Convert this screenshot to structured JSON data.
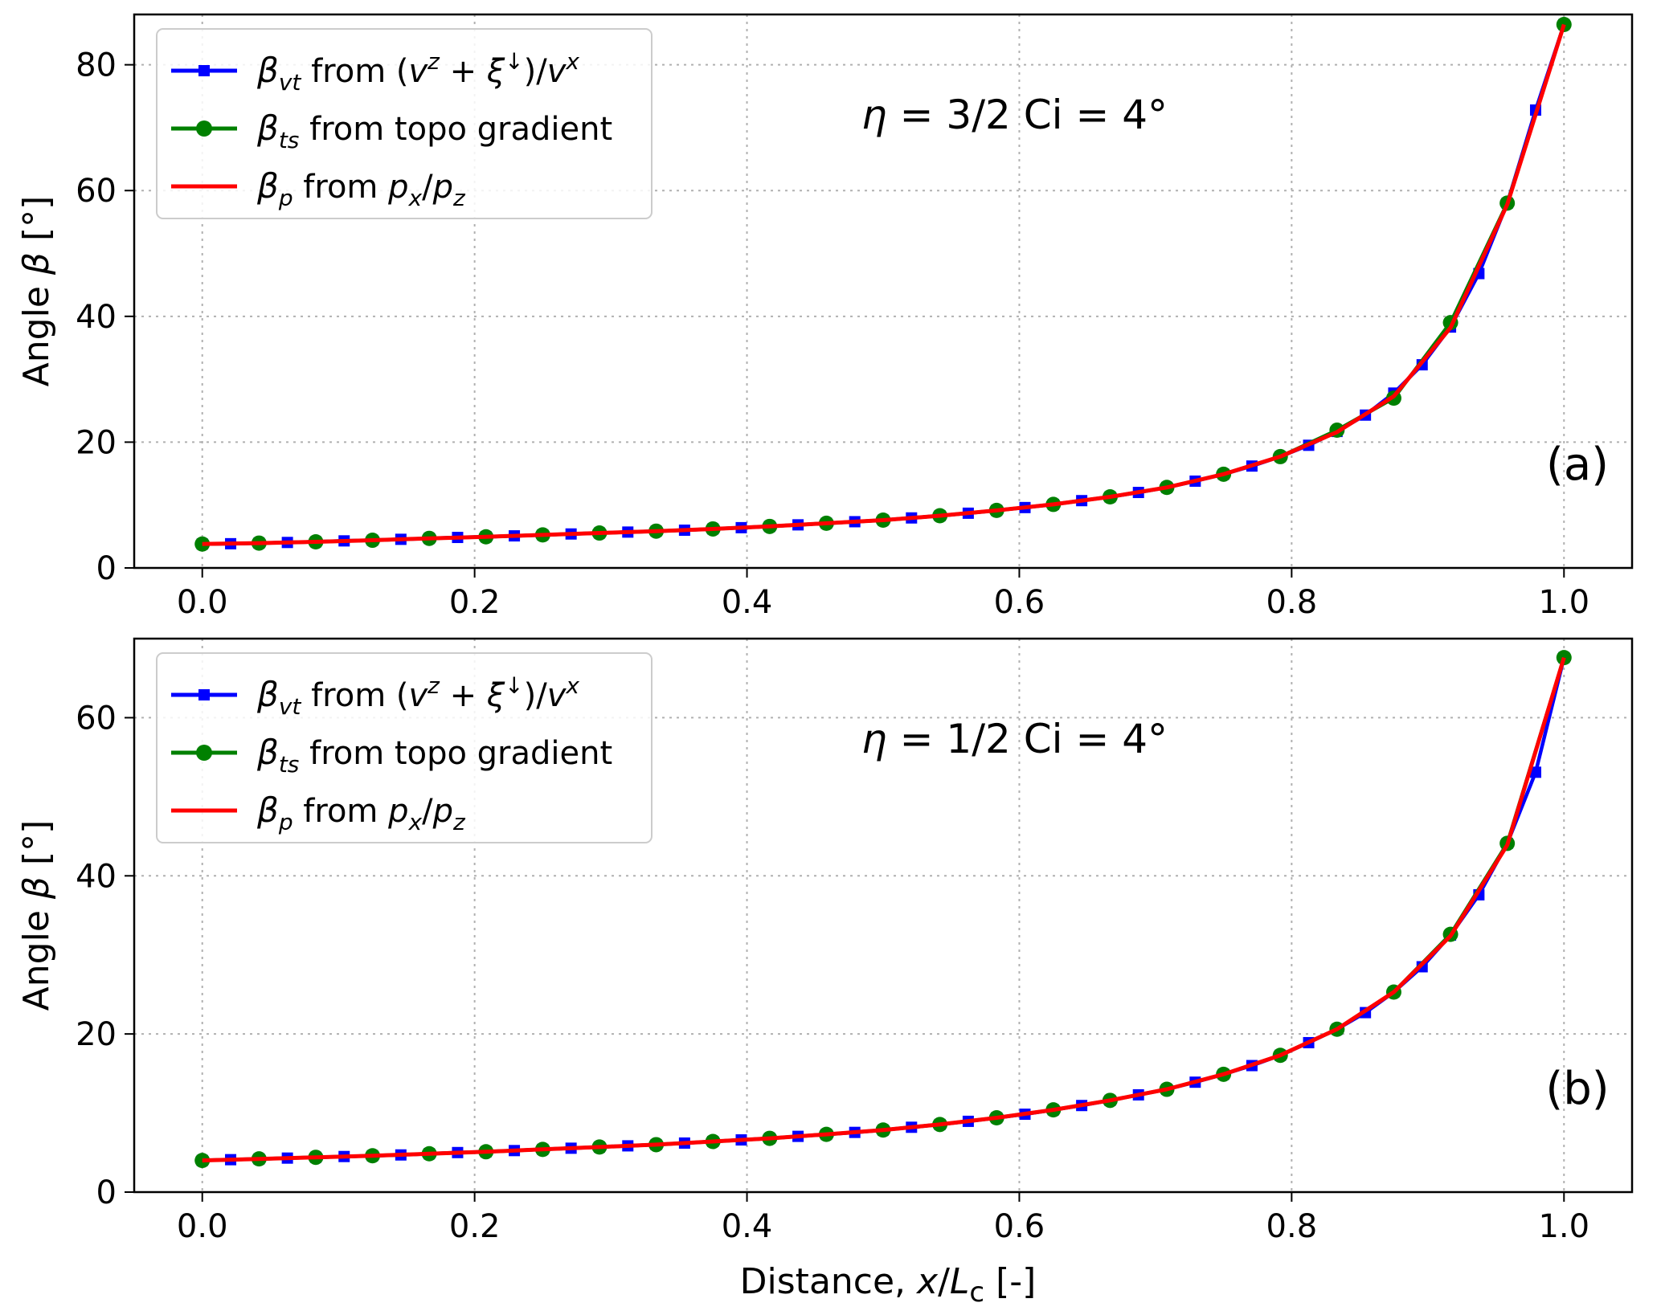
{
  "figure": {
    "xlabel_prefix": "Distance, ",
    "xlabel_var": "x",
    "xlabel_sep": "/",
    "xlabel_L": "L",
    "xlabel_sub": "c",
    "xlabel_unit": "  [-]"
  },
  "legend": {
    "vt": {
      "sym": "β",
      "sub": "vt",
      "text": " from (",
      "vz": "v",
      "vz_sup": "z",
      "plus": " + ",
      "xi": "ξ",
      "xi_sup": "↓",
      "close": ")/",
      "vx": "v",
      "vx_sup": "x"
    },
    "ts": {
      "sym": "β",
      "sub": "ts",
      "text": " from topo gradient"
    },
    "p": {
      "sym": "β",
      "sub": "p",
      "text": " from ",
      "px": "p",
      "px_sub": "x",
      "slash": "/",
      "pz": "p",
      "pz_sub": "z"
    }
  },
  "colors": {
    "vt": "#0000ff",
    "ts": "#008000",
    "p": "#ff0000",
    "grid": "#b0b0b0"
  },
  "chart_data": [
    {
      "type": "line",
      "panel": "(a)",
      "annotation": {
        "eta_sym": "η",
        "eta_rest": " =  3/2    Ci =  4°"
      },
      "xlabel": "",
      "ylabel_prefix": "Angle ",
      "ylabel_sym": "β",
      "ylabel_unit": "  [°]",
      "xlim": [
        -0.05,
        1.05
      ],
      "ylim": [
        0,
        88
      ],
      "xticks": [
        0.0,
        0.2,
        0.4,
        0.6,
        0.8,
        1.0
      ],
      "yticks": [
        0,
        20,
        40,
        60,
        80
      ],
      "legend_position": "upper-left",
      "grid": true,
      "series": [
        {
          "key": "vt",
          "marker": "square",
          "x": [
            0.0,
            0.02083,
            0.04167,
            0.0625,
            0.08333,
            0.10417,
            0.125,
            0.14583,
            0.16667,
            0.1875,
            0.20833,
            0.22917,
            0.25,
            0.27083,
            0.29167,
            0.3125,
            0.33333,
            0.35417,
            0.375,
            0.39583,
            0.41667,
            0.4375,
            0.45833,
            0.47917,
            0.5,
            0.52083,
            0.54167,
            0.5625,
            0.58333,
            0.60417,
            0.625,
            0.64583,
            0.66667,
            0.6875,
            0.70833,
            0.72917,
            0.75,
            0.77083,
            0.79167,
            0.8125,
            0.83333,
            0.85417,
            0.875,
            0.89583,
            0.91667,
            0.9375,
            0.95833,
            0.97917,
            1.0
          ],
          "values": [
            3.8,
            3.85,
            3.95,
            4.05,
            4.15,
            4.3,
            4.4,
            4.55,
            4.7,
            4.85,
            4.95,
            5.1,
            5.25,
            5.4,
            5.55,
            5.7,
            5.85,
            6.0,
            6.2,
            6.4,
            6.6,
            6.85,
            7.1,
            7.35,
            7.6,
            7.95,
            8.3,
            8.7,
            9.15,
            9.6,
            10.1,
            10.7,
            11.3,
            12.0,
            12.8,
            13.8,
            14.9,
            16.2,
            17.7,
            19.5,
            21.7,
            24.3,
            27.8,
            32.3,
            38.3,
            46.8,
            58.0,
            72.8,
            86.4
          ]
        },
        {
          "key": "ts",
          "marker": "circle",
          "x": [
            0.0,
            0.04167,
            0.08333,
            0.125,
            0.16667,
            0.20833,
            0.25,
            0.29167,
            0.33333,
            0.375,
            0.41667,
            0.45833,
            0.5,
            0.54167,
            0.58333,
            0.625,
            0.66667,
            0.70833,
            0.75,
            0.79167,
            0.83333,
            0.875,
            0.91667,
            0.95833,
            1.0
          ],
          "values": [
            3.8,
            3.95,
            4.15,
            4.4,
            4.7,
            4.95,
            5.25,
            5.55,
            5.85,
            6.2,
            6.6,
            7.1,
            7.6,
            8.3,
            9.15,
            10.1,
            11.3,
            12.8,
            14.9,
            17.7,
            21.9,
            27.0,
            39.0,
            58.0,
            86.4
          ]
        },
        {
          "key": "p",
          "marker": "none",
          "x": [
            0.0,
            0.04167,
            0.08333,
            0.125,
            0.16667,
            0.20833,
            0.25,
            0.29167,
            0.33333,
            0.375,
            0.41667,
            0.45833,
            0.5,
            0.54167,
            0.58333,
            0.625,
            0.66667,
            0.70833,
            0.75,
            0.79167,
            0.83333,
            0.875,
            0.91667,
            0.95833,
            1.0
          ],
          "values": [
            3.8,
            3.95,
            4.15,
            4.4,
            4.7,
            4.95,
            5.25,
            5.55,
            5.85,
            6.2,
            6.6,
            7.1,
            7.6,
            8.3,
            9.15,
            10.1,
            11.3,
            12.8,
            14.9,
            17.7,
            21.6,
            27.3,
            38.2,
            57.8,
            86.4
          ]
        }
      ]
    },
    {
      "type": "line",
      "panel": "(b)",
      "annotation": {
        "eta_sym": "η",
        "eta_rest": " =  1/2    Ci =  4°"
      },
      "xlabel": "Distance, x/Lc  [-]",
      "ylabel_prefix": "Angle ",
      "ylabel_sym": "β",
      "ylabel_unit": "  [°]",
      "xlim": [
        -0.05,
        1.05
      ],
      "ylim": [
        0,
        70
      ],
      "xticks": [
        0.0,
        0.2,
        0.4,
        0.6,
        0.8,
        1.0
      ],
      "yticks": [
        0,
        20,
        40,
        60
      ],
      "legend_position": "upper-left",
      "grid": true,
      "series": [
        {
          "key": "vt",
          "marker": "square",
          "x": [
            0.0,
            0.02083,
            0.04167,
            0.0625,
            0.08333,
            0.10417,
            0.125,
            0.14583,
            0.16667,
            0.1875,
            0.20833,
            0.22917,
            0.25,
            0.27083,
            0.29167,
            0.3125,
            0.33333,
            0.35417,
            0.375,
            0.39583,
            0.41667,
            0.4375,
            0.45833,
            0.47917,
            0.5,
            0.52083,
            0.54167,
            0.5625,
            0.58333,
            0.60417,
            0.625,
            0.64583,
            0.66667,
            0.6875,
            0.70833,
            0.72917,
            0.75,
            0.77083,
            0.79167,
            0.8125,
            0.83333,
            0.85417,
            0.875,
            0.89583,
            0.91667,
            0.9375,
            0.95833,
            0.97917,
            1.0
          ],
          "values": [
            4.0,
            4.1,
            4.2,
            4.3,
            4.4,
            4.5,
            4.6,
            4.7,
            4.85,
            5.0,
            5.1,
            5.25,
            5.4,
            5.55,
            5.7,
            5.85,
            6.0,
            6.2,
            6.4,
            6.6,
            6.8,
            7.05,
            7.3,
            7.55,
            7.85,
            8.2,
            8.55,
            8.95,
            9.4,
            9.85,
            10.4,
            10.95,
            11.6,
            12.3,
            13.0,
            13.9,
            14.9,
            16.0,
            17.3,
            18.9,
            20.6,
            22.7,
            25.3,
            28.5,
            32.5,
            37.6,
            44.1,
            53.1,
            67.6
          ]
        },
        {
          "key": "ts",
          "marker": "circle",
          "x": [
            0.0,
            0.04167,
            0.08333,
            0.125,
            0.16667,
            0.20833,
            0.25,
            0.29167,
            0.33333,
            0.375,
            0.41667,
            0.45833,
            0.5,
            0.54167,
            0.58333,
            0.625,
            0.66667,
            0.70833,
            0.75,
            0.79167,
            0.83333,
            0.875,
            0.91667,
            0.95833,
            1.0
          ],
          "values": [
            4.0,
            4.2,
            4.4,
            4.6,
            4.85,
            5.1,
            5.4,
            5.7,
            6.0,
            6.4,
            6.8,
            7.3,
            7.85,
            8.55,
            9.4,
            10.4,
            11.6,
            13.0,
            14.9,
            17.3,
            20.6,
            25.3,
            32.6,
            44.1,
            67.6
          ]
        },
        {
          "key": "p",
          "marker": "none",
          "x": [
            0.0,
            0.04167,
            0.08333,
            0.125,
            0.16667,
            0.20833,
            0.25,
            0.29167,
            0.33333,
            0.375,
            0.41667,
            0.45833,
            0.5,
            0.54167,
            0.58333,
            0.625,
            0.66667,
            0.70833,
            0.75,
            0.79167,
            0.83333,
            0.875,
            0.91667,
            0.95833,
            1.0
          ],
          "values": [
            4.0,
            4.2,
            4.4,
            4.6,
            4.85,
            5.1,
            5.4,
            5.7,
            6.0,
            6.4,
            6.8,
            7.3,
            7.85,
            8.55,
            9.4,
            10.4,
            11.6,
            13.0,
            14.9,
            17.3,
            20.6,
            25.3,
            32.4,
            43.9,
            67.6
          ]
        }
      ]
    }
  ]
}
